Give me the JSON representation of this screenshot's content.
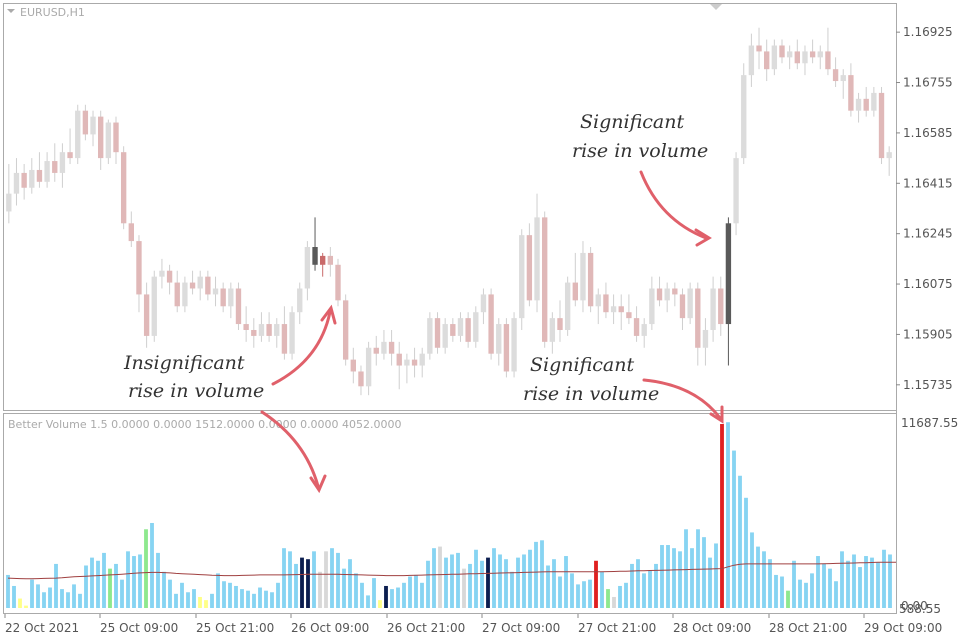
{
  "window": {
    "title": "EURUSD,H1",
    "indicator_label": "Better Volume 1.5 0.0000 0.0000 1512.0000 0.0000 0.0000 4052.0000"
  },
  "price_axis": {
    "labels": [
      "1.16925",
      "1.16755",
      "1.16585",
      "1.16415",
      "1.16245",
      "1.16075",
      "1.15905",
      "1.15735"
    ]
  },
  "volume_axis": {
    "top_label": "11687.55",
    "bottom_label": "0.00",
    "bottom_overlap_label": "588.55"
  },
  "time_axis": {
    "labels": [
      "22 Oct 2021",
      "25 Oct 09:00",
      "25 Oct 21:00",
      "26 Oct 09:00",
      "26 Oct 21:00",
      "27 Oct 09:00",
      "27 Oct 21:00",
      "28 Oct 09:00",
      "28 Oct 21:00",
      "29 Oct 09:00"
    ]
  },
  "annotations": [
    {
      "line1": "Insignificant",
      "line2": "rise in volume"
    },
    {
      "line1": "Significant",
      "line2": "rise in volume"
    },
    {
      "line1": "Significant",
      "line2": "rise in volume"
    }
  ],
  "colors": {
    "bull_candle": "#dcdcdc",
    "bear_candle": "#e0b8b8",
    "highlight_dark": "#5a5a5a",
    "highlight_red": "#c96a6a",
    "volume_default": "#87d4f2",
    "volume_red": "#e02020",
    "volume_green": "#8ee88e",
    "volume_yellow": "#ffff88",
    "volume_navy": "#0c1e50",
    "volume_gray": "#d8d8d8",
    "moving_average": "#a04040",
    "arrow": "#e0606a"
  },
  "chart_data": [
    {
      "type": "candlestick",
      "title": "EURUSD,H1",
      "ylim": [
        1.1565,
        1.1702
      ],
      "candles": [
        {
          "o": 1.1632,
          "h": 1.1648,
          "l": 1.1628,
          "c": 1.1638
        },
        {
          "o": 1.1638,
          "h": 1.165,
          "l": 1.1634,
          "c": 1.1645
        },
        {
          "o": 1.1645,
          "h": 1.1648,
          "l": 1.1636,
          "c": 1.164
        },
        {
          "o": 1.164,
          "h": 1.165,
          "l": 1.1638,
          "c": 1.1646
        },
        {
          "o": 1.1646,
          "h": 1.1652,
          "l": 1.164,
          "c": 1.1642
        },
        {
          "o": 1.1642,
          "h": 1.1652,
          "l": 1.164,
          "c": 1.1649
        },
        {
          "o": 1.1649,
          "h": 1.1655,
          "l": 1.1642,
          "c": 1.1645
        },
        {
          "o": 1.1645,
          "h": 1.1655,
          "l": 1.164,
          "c": 1.1652
        },
        {
          "o": 1.1652,
          "h": 1.166,
          "l": 1.1648,
          "c": 1.165
        },
        {
          "o": 1.165,
          "h": 1.1668,
          "l": 1.1648,
          "c": 1.1666
        },
        {
          "o": 1.1666,
          "h": 1.1668,
          "l": 1.1656,
          "c": 1.1658
        },
        {
          "o": 1.1658,
          "h": 1.1666,
          "l": 1.1654,
          "c": 1.1664
        },
        {
          "o": 1.1664,
          "h": 1.1666,
          "l": 1.1646,
          "c": 1.165
        },
        {
          "o": 1.165,
          "h": 1.1663,
          "l": 1.1648,
          "c": 1.1662
        },
        {
          "o": 1.1662,
          "h": 1.1664,
          "l": 1.1648,
          "c": 1.1652
        },
        {
          "o": 1.1652,
          "h": 1.1654,
          "l": 1.1626,
          "c": 1.1628
        },
        {
          "o": 1.1628,
          "h": 1.1632,
          "l": 1.162,
          "c": 1.1622
        },
        {
          "o": 1.1622,
          "h": 1.1624,
          "l": 1.1598,
          "c": 1.1604
        },
        {
          "o": 1.1604,
          "h": 1.1608,
          "l": 1.1586,
          "c": 1.159
        },
        {
          "o": 1.159,
          "h": 1.1612,
          "l": 1.1588,
          "c": 1.161
        },
        {
          "o": 1.161,
          "h": 1.1616,
          "l": 1.1606,
          "c": 1.1612
        },
        {
          "o": 1.1612,
          "h": 1.1614,
          "l": 1.1604,
          "c": 1.1608
        },
        {
          "o": 1.1608,
          "h": 1.1612,
          "l": 1.1598,
          "c": 1.16
        },
        {
          "o": 1.16,
          "h": 1.161,
          "l": 1.1598,
          "c": 1.1608
        },
        {
          "o": 1.1608,
          "h": 1.1612,
          "l": 1.1604,
          "c": 1.1606
        },
        {
          "o": 1.1606,
          "h": 1.1612,
          "l": 1.1602,
          "c": 1.161
        },
        {
          "o": 1.161,
          "h": 1.1612,
          "l": 1.1602,
          "c": 1.1604
        },
        {
          "o": 1.1604,
          "h": 1.161,
          "l": 1.16,
          "c": 1.1606
        },
        {
          "o": 1.1606,
          "h": 1.1608,
          "l": 1.1598,
          "c": 1.16
        },
        {
          "o": 1.16,
          "h": 1.1608,
          "l": 1.1596,
          "c": 1.1606
        },
        {
          "o": 1.1606,
          "h": 1.1608,
          "l": 1.1592,
          "c": 1.1594
        },
        {
          "o": 1.1594,
          "h": 1.16,
          "l": 1.1588,
          "c": 1.1592
        },
        {
          "o": 1.1592,
          "h": 1.1596,
          "l": 1.1586,
          "c": 1.159
        },
        {
          "o": 1.159,
          "h": 1.1598,
          "l": 1.1588,
          "c": 1.1594
        },
        {
          "o": 1.1594,
          "h": 1.1598,
          "l": 1.1588,
          "c": 1.159
        },
        {
          "o": 1.159,
          "h": 1.1596,
          "l": 1.1586,
          "c": 1.1594
        },
        {
          "o": 1.1594,
          "h": 1.16,
          "l": 1.1582,
          "c": 1.1584
        },
        {
          "o": 1.1584,
          "h": 1.16,
          "l": 1.1582,
          "c": 1.1598
        },
        {
          "o": 1.1598,
          "h": 1.1608,
          "l": 1.1594,
          "c": 1.1606
        },
        {
          "o": 1.1606,
          "h": 1.1622,
          "l": 1.1602,
          "c": 1.162
        },
        {
          "o": 1.162,
          "h": 1.163,
          "l": 1.1612,
          "c": 1.1614
        },
        {
          "o": 1.1614,
          "h": 1.1618,
          "l": 1.161,
          "c": 1.1617
        },
        {
          "o": 1.1617,
          "h": 1.162,
          "l": 1.161,
          "c": 1.1614
        },
        {
          "o": 1.1614,
          "h": 1.1616,
          "l": 1.16,
          "c": 1.1602
        },
        {
          "o": 1.1602,
          "h": 1.1604,
          "l": 1.158,
          "c": 1.1582
        },
        {
          "o": 1.1582,
          "h": 1.1586,
          "l": 1.1574,
          "c": 1.1578
        },
        {
          "o": 1.1578,
          "h": 1.158,
          "l": 1.157,
          "c": 1.1573
        },
        {
          "o": 1.1573,
          "h": 1.1588,
          "l": 1.157,
          "c": 1.1586
        },
        {
          "o": 1.1586,
          "h": 1.159,
          "l": 1.158,
          "c": 1.1584
        },
        {
          "o": 1.1584,
          "h": 1.1592,
          "l": 1.1582,
          "c": 1.1588
        },
        {
          "o": 1.1588,
          "h": 1.1592,
          "l": 1.158,
          "c": 1.1584
        },
        {
          "o": 1.1584,
          "h": 1.1588,
          "l": 1.1572,
          "c": 1.158
        },
        {
          "o": 1.158,
          "h": 1.1584,
          "l": 1.1574,
          "c": 1.1582
        },
        {
          "o": 1.1582,
          "h": 1.1586,
          "l": 1.1576,
          "c": 1.158
        },
        {
          "o": 1.158,
          "h": 1.1586,
          "l": 1.1576,
          "c": 1.1584
        },
        {
          "o": 1.1584,
          "h": 1.1598,
          "l": 1.1582,
          "c": 1.1596
        },
        {
          "o": 1.1596,
          "h": 1.1598,
          "l": 1.1584,
          "c": 1.1586
        },
        {
          "o": 1.1586,
          "h": 1.1596,
          "l": 1.1584,
          "c": 1.1594
        },
        {
          "o": 1.1594,
          "h": 1.1596,
          "l": 1.1588,
          "c": 1.159
        },
        {
          "o": 1.159,
          "h": 1.1598,
          "l": 1.1588,
          "c": 1.1596
        },
        {
          "o": 1.1596,
          "h": 1.1598,
          "l": 1.1586,
          "c": 1.1588
        },
        {
          "o": 1.1588,
          "h": 1.16,
          "l": 1.1586,
          "c": 1.1598
        },
        {
          "o": 1.1598,
          "h": 1.1606,
          "l": 1.1594,
          "c": 1.1604
        },
        {
          "o": 1.1604,
          "h": 1.1606,
          "l": 1.1582,
          "c": 1.1584
        },
        {
          "o": 1.1584,
          "h": 1.1596,
          "l": 1.158,
          "c": 1.1594
        },
        {
          "o": 1.1594,
          "h": 1.1596,
          "l": 1.1576,
          "c": 1.1578
        },
        {
          "o": 1.1578,
          "h": 1.1598,
          "l": 1.1576,
          "c": 1.1596
        },
        {
          "o": 1.1596,
          "h": 1.1626,
          "l": 1.1592,
          "c": 1.1624
        },
        {
          "o": 1.1624,
          "h": 1.1628,
          "l": 1.16,
          "c": 1.1602
        },
        {
          "o": 1.1602,
          "h": 1.1638,
          "l": 1.1598,
          "c": 1.163
        },
        {
          "o": 1.163,
          "h": 1.1632,
          "l": 1.1586,
          "c": 1.1588
        },
        {
          "o": 1.1588,
          "h": 1.1598,
          "l": 1.1584,
          "c": 1.1596
        },
        {
          "o": 1.1596,
          "h": 1.1602,
          "l": 1.1588,
          "c": 1.1592
        },
        {
          "o": 1.1592,
          "h": 1.161,
          "l": 1.159,
          "c": 1.1608
        },
        {
          "o": 1.1608,
          "h": 1.1618,
          "l": 1.16,
          "c": 1.1602
        },
        {
          "o": 1.1602,
          "h": 1.1622,
          "l": 1.1598,
          "c": 1.1618
        },
        {
          "o": 1.1618,
          "h": 1.162,
          "l": 1.1598,
          "c": 1.16
        },
        {
          "o": 1.16,
          "h": 1.1606,
          "l": 1.1594,
          "c": 1.1604
        },
        {
          "o": 1.1604,
          "h": 1.1608,
          "l": 1.1596,
          "c": 1.1598
        },
        {
          "o": 1.1598,
          "h": 1.1604,
          "l": 1.1594,
          "c": 1.16
        },
        {
          "o": 1.16,
          "h": 1.1604,
          "l": 1.1592,
          "c": 1.1598
        },
        {
          "o": 1.1598,
          "h": 1.1604,
          "l": 1.1594,
          "c": 1.1596
        },
        {
          "o": 1.1596,
          "h": 1.16,
          "l": 1.1588,
          "c": 1.159
        },
        {
          "o": 1.159,
          "h": 1.1596,
          "l": 1.1586,
          "c": 1.1594
        },
        {
          "o": 1.1594,
          "h": 1.161,
          "l": 1.1592,
          "c": 1.1606
        },
        {
          "o": 1.1606,
          "h": 1.161,
          "l": 1.16,
          "c": 1.1602
        },
        {
          "o": 1.1602,
          "h": 1.1608,
          "l": 1.1598,
          "c": 1.1606
        },
        {
          "o": 1.1606,
          "h": 1.1608,
          "l": 1.16,
          "c": 1.1604
        },
        {
          "o": 1.1604,
          "h": 1.1606,
          "l": 1.1592,
          "c": 1.1596
        },
        {
          "o": 1.1596,
          "h": 1.1608,
          "l": 1.1594,
          "c": 1.1606
        },
        {
          "o": 1.1606,
          "h": 1.1608,
          "l": 1.158,
          "c": 1.1586
        },
        {
          "o": 1.1586,
          "h": 1.1596,
          "l": 1.158,
          "c": 1.1592
        },
        {
          "o": 1.1592,
          "h": 1.161,
          "l": 1.1588,
          "c": 1.1606
        },
        {
          "o": 1.1606,
          "h": 1.161,
          "l": 1.159,
          "c": 1.1594
        },
        {
          "o": 1.1594,
          "h": 1.163,
          "l": 1.158,
          "c": 1.1628
        },
        {
          "o": 1.1628,
          "h": 1.1652,
          "l": 1.1624,
          "c": 1.165
        },
        {
          "o": 1.165,
          "h": 1.1682,
          "l": 1.1648,
          "c": 1.1678
        },
        {
          "o": 1.1678,
          "h": 1.1692,
          "l": 1.1674,
          "c": 1.1688
        },
        {
          "o": 1.1688,
          "h": 1.1694,
          "l": 1.168,
          "c": 1.1686
        },
        {
          "o": 1.1686,
          "h": 1.169,
          "l": 1.1676,
          "c": 1.168
        },
        {
          "o": 1.168,
          "h": 1.169,
          "l": 1.1678,
          "c": 1.1688
        },
        {
          "o": 1.1688,
          "h": 1.169,
          "l": 1.1682,
          "c": 1.1684
        },
        {
          "o": 1.1684,
          "h": 1.1688,
          "l": 1.168,
          "c": 1.1686
        },
        {
          "o": 1.1686,
          "h": 1.169,
          "l": 1.168,
          "c": 1.1682
        },
        {
          "o": 1.1682,
          "h": 1.1688,
          "l": 1.1678,
          "c": 1.1686
        },
        {
          "o": 1.1686,
          "h": 1.169,
          "l": 1.1682,
          "c": 1.1684
        },
        {
          "o": 1.1684,
          "h": 1.1688,
          "l": 1.168,
          "c": 1.1686
        },
        {
          "o": 1.1686,
          "h": 1.1694,
          "l": 1.1678,
          "c": 1.168
        },
        {
          "o": 1.168,
          "h": 1.1684,
          "l": 1.1674,
          "c": 1.1676
        },
        {
          "o": 1.1676,
          "h": 1.168,
          "l": 1.167,
          "c": 1.1678
        },
        {
          "o": 1.1678,
          "h": 1.1682,
          "l": 1.1664,
          "c": 1.1666
        },
        {
          "o": 1.1666,
          "h": 1.1672,
          "l": 1.1662,
          "c": 1.167
        },
        {
          "o": 1.167,
          "h": 1.1674,
          "l": 1.1664,
          "c": 1.1666
        },
        {
          "o": 1.1666,
          "h": 1.1674,
          "l": 1.1664,
          "c": 1.1672
        },
        {
          "o": 1.1672,
          "h": 1.1674,
          "l": 1.1648,
          "c": 1.165
        },
        {
          "o": 1.165,
          "h": 1.1654,
          "l": 1.1644,
          "c": 1.1652
        }
      ],
      "highlighted": [
        {
          "index": 40,
          "color": "highlight_dark"
        },
        {
          "index": 41,
          "color": "highlight_red"
        },
        {
          "index": 94,
          "color": "highlight_dark"
        }
      ]
    },
    {
      "type": "bar",
      "title": "Better Volume 1.5",
      "ylim": [
        0,
        11687.55
      ],
      "values": [
        2100,
        1400,
        600,
        150,
        1800,
        1500,
        1000,
        1300,
        2800,
        1200,
        1000,
        1500,
        900,
        2700,
        3200,
        3000,
        3500,
        2500,
        2800,
        1800,
        3600,
        3300,
        3400,
        5000,
        5400,
        3500,
        2300,
        1800,
        900,
        1600,
        1000,
        1200,
        700,
        500,
        900,
        2200,
        1700,
        1600,
        1400,
        1200,
        1100,
        900,
        1300,
        1100,
        1000,
        1600,
        3800,
        3600,
        2800,
        3200,
        3100,
        3600,
        2300,
        3600,
        3800,
        3500,
        2500,
        3100,
        2200,
        1600,
        800,
        1900,
        500,
        1400,
        1200,
        1300,
        1600,
        2000,
        2100,
        1600,
        3000,
        3800,
        3900,
        3200,
        3400,
        3500,
        2500,
        2800,
        3700,
        3000,
        3200,
        3800,
        3400,
        3100,
        2300,
        3200,
        3400,
        3700,
        4200,
        4300,
        2700,
        3100,
        2000,
        3300,
        2200,
        1500,
        1700,
        1800,
        3000,
        2300,
        1200,
        700,
        1400,
        1600,
        2800,
        3100,
        2200,
        2400,
        2800,
        4000,
        4000,
        3800,
        3600,
        5000,
        3800,
        5000,
        4500,
        3200,
        4100,
        11687.55,
        11800,
        10000,
        8400,
        7000,
        4800,
        3900,
        3600,
        3100,
        2100,
        2000,
        1100,
        3000,
        1800,
        1600,
        2200,
        3300,
        2800,
        2500,
        1700,
        3600,
        3000,
        3400,
        2600,
        3300,
        3200,
        2900,
        3700,
        3400
      ],
      "bar_colors": {
        "17": "volume_green",
        "23": "volume_green",
        "49": "volume_navy",
        "50": "volume_navy",
        "52": "volume_gray",
        "53": "volume_gray",
        "63": "volume_navy",
        "72": "volume_gray",
        "76": "volume_gray",
        "80": "volume_navy",
        "98": "volume_red",
        "100": "volume_green",
        "101": "volume_gray",
        "119": "volume_red",
        "130": "volume_green"
      },
      "ma_label": "moving average",
      "ma_values": [
        1900,
        1880,
        1870,
        1860,
        1860,
        1870,
        1880,
        1890,
        1900,
        1920,
        1950,
        1980,
        2000,
        2020,
        2040,
        2060,
        2080,
        2100,
        2120,
        2150,
        2180,
        2210,
        2230,
        2250,
        2260,
        2260,
        2250,
        2230,
        2200,
        2180,
        2160,
        2140,
        2120,
        2100,
        2080,
        2070,
        2060,
        2060,
        2060,
        2070,
        2080,
        2090,
        2100,
        2100,
        2100,
        2100,
        2100,
        2110,
        2120,
        2130,
        2140,
        2150,
        2150,
        2150,
        2150,
        2140,
        2130,
        2120,
        2110,
        2100,
        2090,
        2080,
        2070,
        2060,
        2060,
        2060,
        2060,
        2070,
        2080,
        2090,
        2100,
        2110,
        2120,
        2130,
        2140,
        2150,
        2160,
        2170,
        2180,
        2190,
        2200,
        2210,
        2220,
        2230,
        2240,
        2250,
        2260,
        2270,
        2280,
        2290,
        2300,
        2300,
        2300,
        2300,
        2300,
        2300,
        2300,
        2300,
        2300,
        2300,
        2310,
        2320,
        2330,
        2340,
        2350,
        2360,
        2370,
        2380,
        2390,
        2400,
        2410,
        2420,
        2430,
        2440,
        2450,
        2460,
        2470,
        2480,
        2490,
        2500,
        2620,
        2720,
        2780,
        2800,
        2800,
        2800,
        2800,
        2800,
        2800,
        2800,
        2800,
        2800,
        2800,
        2800,
        2800,
        2800,
        2810,
        2820,
        2830,
        2840,
        2850,
        2860,
        2870,
        2880,
        2890,
        2900,
        2900,
        2900,
        2900
      ]
    }
  ]
}
